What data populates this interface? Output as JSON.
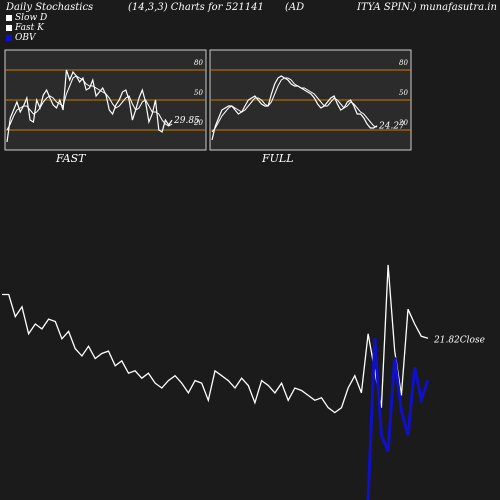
{
  "header": {
    "left": "Daily Stochastics",
    "center1": "(14,3,3) Charts for 521141",
    "center2": "(AD",
    "right": "ITYA SPIN.) munafasutra.in"
  },
  "legend": [
    {
      "label": "Slow  D",
      "color": "#ffffff"
    },
    {
      "label": "Fast K",
      "color": "#ffffff"
    },
    {
      "label": "OBV",
      "color": "#1010c8"
    }
  ],
  "panels": {
    "fast": {
      "label": "FAST",
      "last_value": "29.85"
    },
    "full": {
      "label": "FULL",
      "last_value": "24.27"
    }
  },
  "close_label": "21.82Close",
  "colors": {
    "price": "#ffffff",
    "obv": "#1010c8",
    "level": "#c87800",
    "stoch": "#ffffff"
  },
  "chart_data": [
    {
      "type": "line",
      "title": "FAST",
      "ylim": [
        0,
        100
      ],
      "levels": [
        20,
        50,
        80
      ],
      "tick_labels": [
        "80",
        "50",
        "20"
      ],
      "series": [
        {
          "name": "Fast K",
          "values": [
            8,
            32,
            40,
            48,
            38,
            44,
            52,
            30,
            28,
            50,
            42,
            55,
            60,
            52,
            45,
            42,
            50,
            40,
            80,
            70,
            78,
            74,
            68,
            72,
            60,
            62,
            70,
            54,
            58,
            62,
            55,
            40,
            36,
            45,
            50,
            58,
            60,
            50,
            30,
            40,
            52,
            60,
            48,
            28,
            36,
            50,
            20,
            18,
            30,
            25,
            29.85
          ]
        },
        {
          "name": "Slow D",
          "values": [
            20,
            26,
            34,
            40,
            42,
            44,
            44,
            40,
            36,
            38,
            42,
            48,
            52,
            54,
            52,
            48,
            46,
            44,
            56,
            64,
            72,
            74,
            72,
            70,
            66,
            64,
            64,
            62,
            60,
            58,
            56,
            52,
            46,
            42,
            44,
            48,
            52,
            54,
            46,
            40,
            42,
            48,
            50,
            44,
            38,
            38,
            36,
            30,
            26,
            24,
            26
          ]
        }
      ]
    },
    {
      "type": "line",
      "title": "FULL",
      "ylim": [
        0,
        100
      ],
      "levels": [
        20,
        50,
        80
      ],
      "tick_labels": [
        "80",
        "50",
        "20"
      ],
      "series": [
        {
          "name": "Full K",
          "values": [
            10,
            24,
            32,
            40,
            42,
            44,
            44,
            40,
            36,
            38,
            44,
            50,
            52,
            54,
            50,
            46,
            44,
            44,
            56,
            66,
            72,
            74,
            72,
            70,
            66,
            64,
            64,
            62,
            60,
            58,
            56,
            52,
            46,
            42,
            44,
            48,
            52,
            54,
            46,
            40,
            42,
            48,
            50,
            44,
            36,
            36,
            32,
            26,
            22,
            22,
            24.27
          ]
        },
        {
          "name": "Full D",
          "values": [
            18,
            22,
            28,
            34,
            38,
            42,
            44,
            42,
            40,
            38,
            40,
            44,
            48,
            52,
            52,
            50,
            46,
            44,
            48,
            56,
            64,
            70,
            72,
            72,
            70,
            66,
            64,
            62,
            62,
            60,
            58,
            56,
            52,
            48,
            44,
            44,
            48,
            52,
            50,
            46,
            42,
            44,
            48,
            46,
            42,
            38,
            36,
            32,
            28,
            24,
            23
          ]
        }
      ]
    },
    {
      "type": "line",
      "title": "",
      "series": [
        {
          "name": "Close",
          "values": [
            23.6,
            23.6,
            22.7,
            23.1,
            22.0,
            22.4,
            22.2,
            22.6,
            22.5,
            21.8,
            22.1,
            21.4,
            21.1,
            21.5,
            21.0,
            21.2,
            21.3,
            20.7,
            20.9,
            20.4,
            20.5,
            20.2,
            20.4,
            20.0,
            19.8,
            20.1,
            20.3,
            20.0,
            19.6,
            20.1,
            20.0,
            19.3,
            20.5,
            20.3,
            20.1,
            19.8,
            20.2,
            19.9,
            19.2,
            20.1,
            19.9,
            19.6,
            20.0,
            19.3,
            19.8,
            19.7,
            19.5,
            19.3,
            19.4,
            19.0,
            18.8,
            19.0,
            19.8,
            20.3,
            19.6,
            22.0,
            20.5,
            19.0,
            24.8,
            21.3,
            19.5,
            23.0,
            22.4,
            21.9,
            21.82
          ]
        },
        {
          "name": "OBV",
          "values": [
            0,
            100,
            40,
            30,
            88,
            55,
            40,
            82,
            62,
            74
          ]
        }
      ]
    }
  ]
}
